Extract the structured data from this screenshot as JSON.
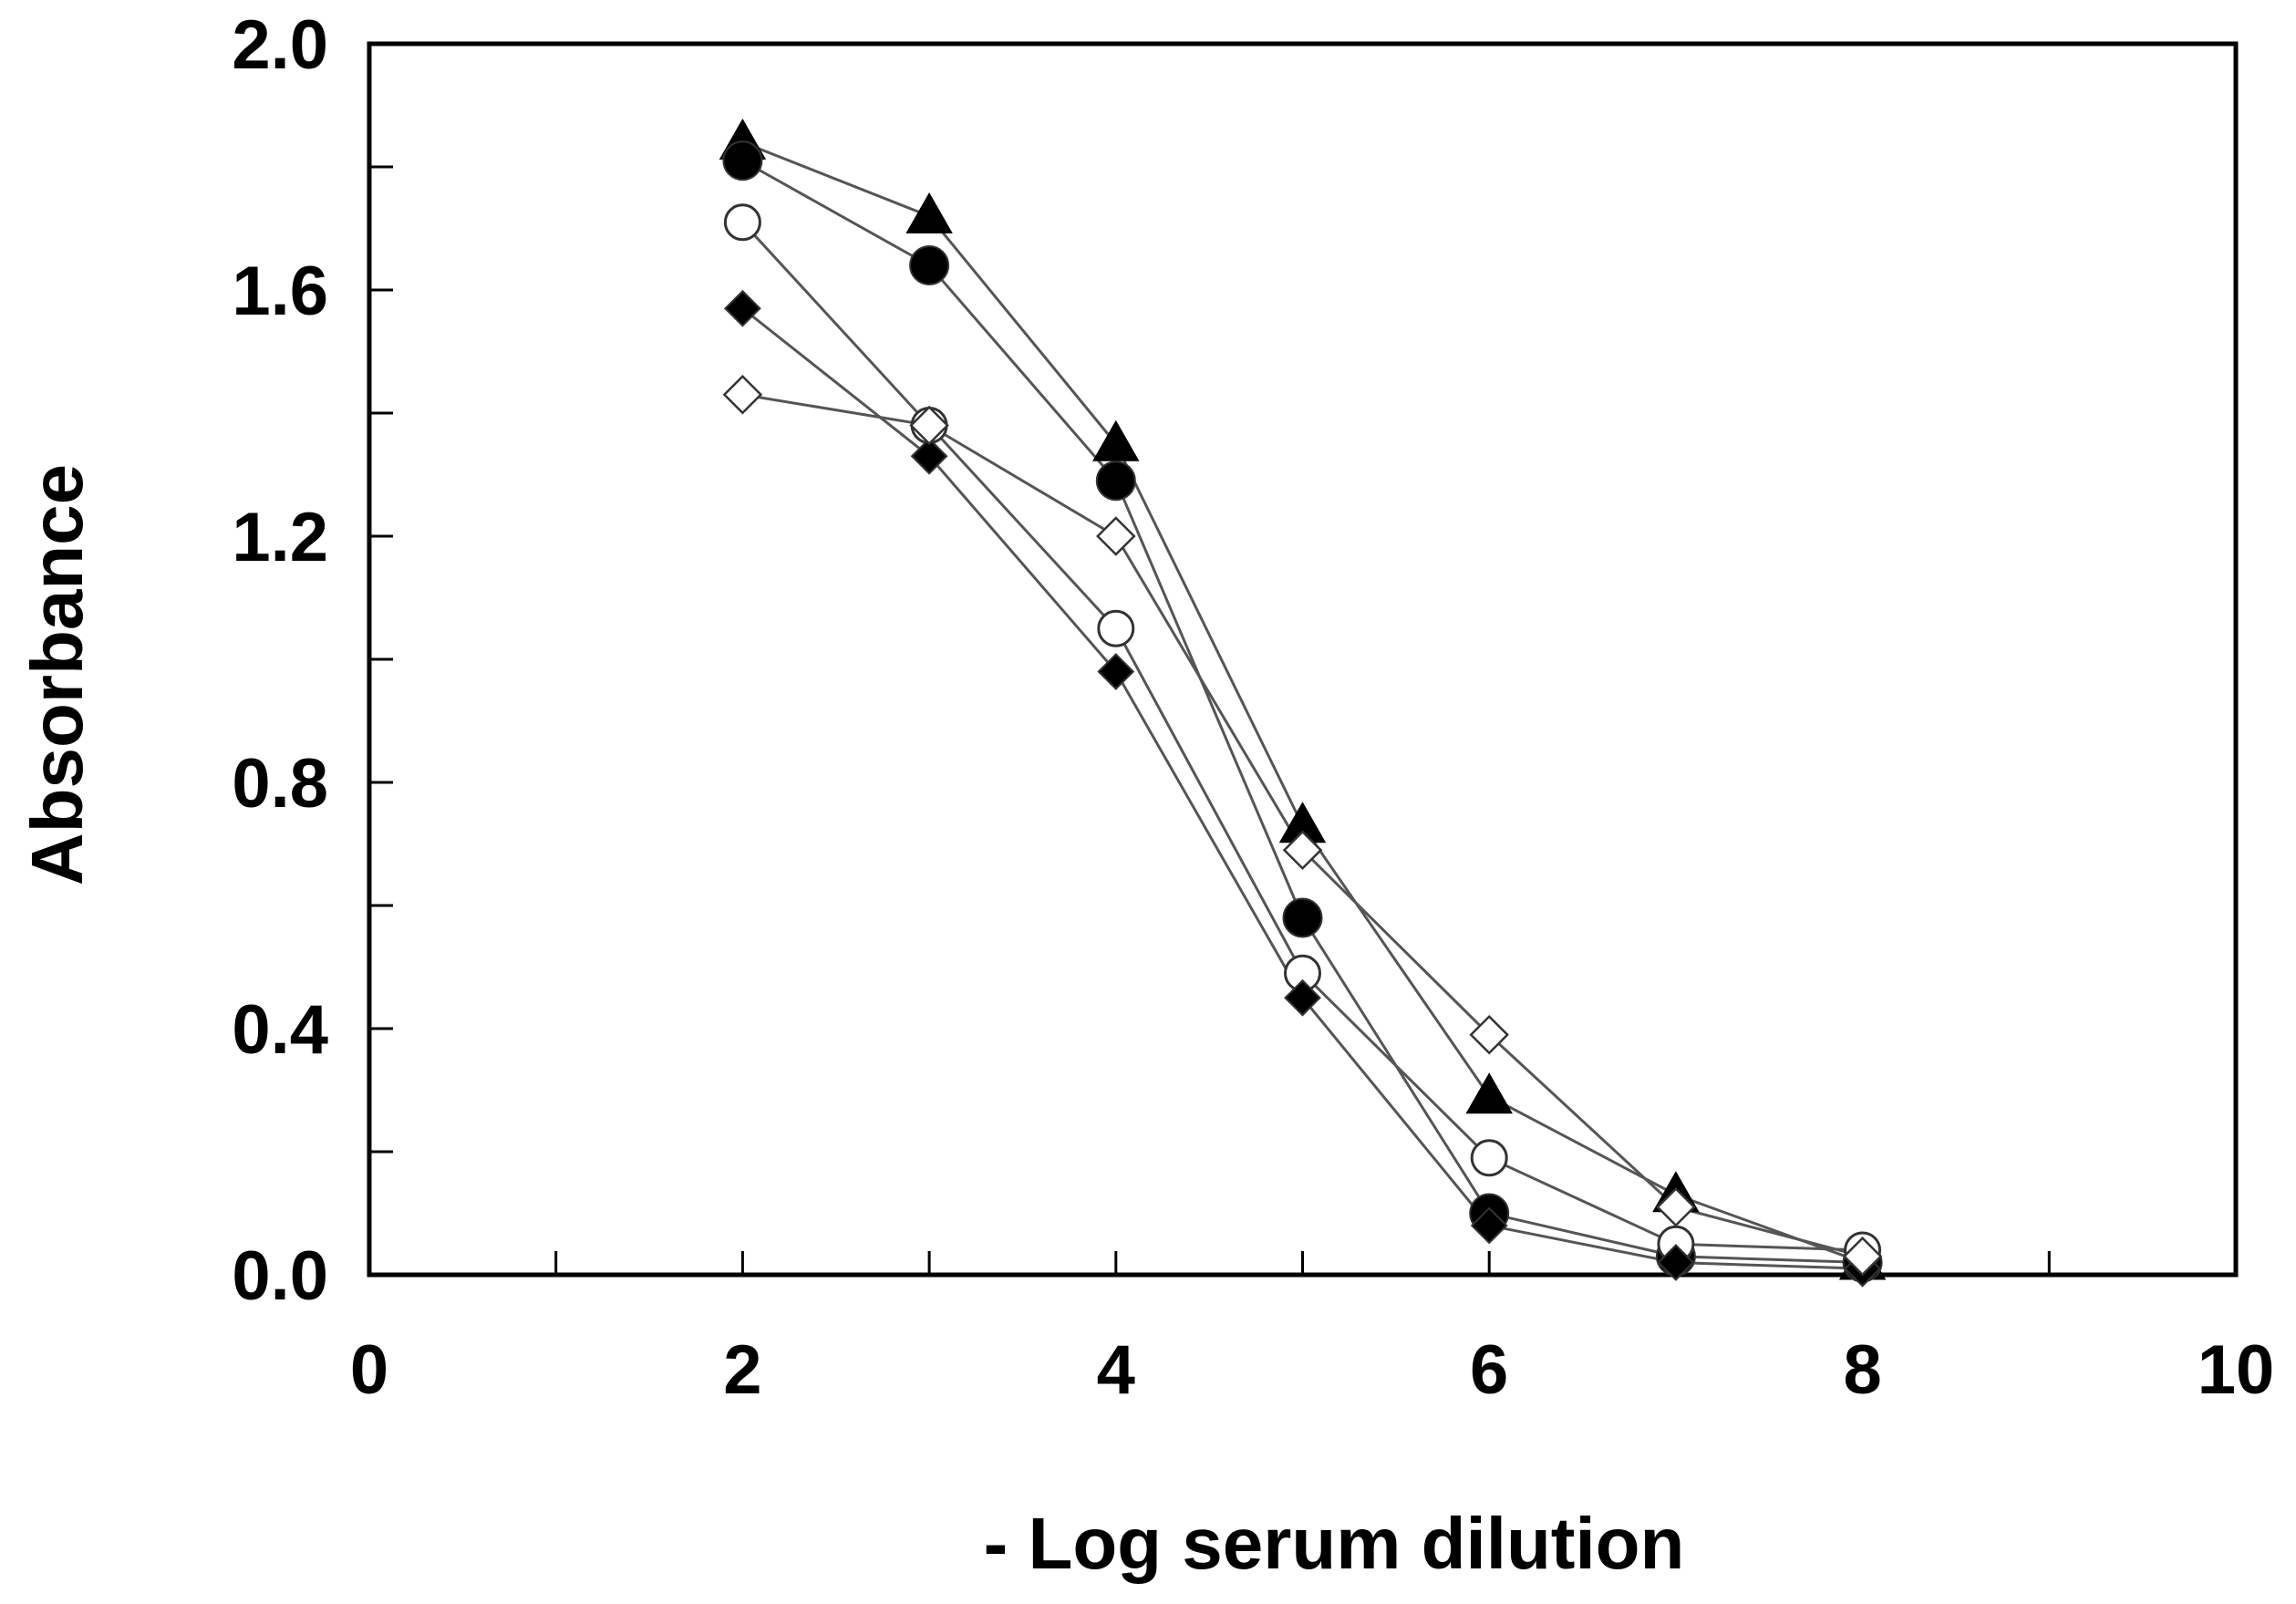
{
  "chart_data": {
    "type": "line",
    "title": "",
    "xlabel": "- Log serum dilution",
    "ylabel": "Absorbance",
    "xlim": [
      0,
      10
    ],
    "ylim": [
      0,
      2.0
    ],
    "x_ticks": [
      0,
      2,
      4,
      6,
      8,
      10
    ],
    "x_tick_labels": [
      "0",
      "2",
      "4",
      "6",
      "8",
      "10"
    ],
    "x_minor_ticks": [
      1,
      3,
      5,
      7,
      9
    ],
    "y_ticks": [
      0,
      0.4,
      0.8,
      1.2,
      1.6,
      2.0
    ],
    "y_tick_labels": [
      "0.0",
      "0.4",
      "0.8",
      "1.2",
      "1.6",
      "2.0"
    ],
    "y_minor_ticks": [
      0.2,
      0.6,
      1.0,
      1.4,
      1.8
    ],
    "grid": false,
    "legend": "none",
    "series": [
      {
        "marker": "triangle-filled",
        "x": [
          2,
          3,
          4,
          5,
          6,
          7,
          8
        ],
        "y": [
          1.84,
          1.72,
          1.35,
          0.73,
          0.29,
          0.13,
          0.02
        ]
      },
      {
        "marker": "circle-filled",
        "x": [
          2,
          3,
          4,
          5,
          6,
          7,
          8
        ],
        "y": [
          1.81,
          1.64,
          1.29,
          0.58,
          0.1,
          0.03,
          0.02
        ]
      },
      {
        "marker": "circle-open",
        "x": [
          2,
          3,
          4,
          5,
          6,
          7,
          8
        ],
        "y": [
          1.71,
          1.38,
          1.05,
          0.49,
          0.19,
          0.05,
          0.04
        ]
      },
      {
        "marker": "diamond-filled",
        "x": [
          2,
          3,
          4,
          5,
          6,
          7,
          8
        ],
        "y": [
          1.57,
          1.33,
          0.98,
          0.45,
          0.08,
          0.02,
          0.01
        ]
      },
      {
        "marker": "diamond-open",
        "x": [
          2,
          3,
          4,
          5,
          6,
          7,
          8
        ],
        "y": [
          1.43,
          1.38,
          1.2,
          0.69,
          0.39,
          0.11,
          0.03
        ]
      }
    ]
  }
}
